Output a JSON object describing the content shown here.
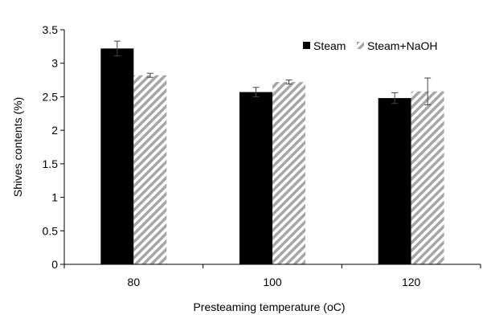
{
  "chart_data": {
    "type": "bar",
    "xlabel": "Presteaming temperature (oC)",
    "ylabel": "Shives contents (%)",
    "categories": [
      "80",
      "100",
      "120"
    ],
    "ylim": [
      0,
      3.5
    ],
    "yticks": [
      "0",
      "0.5",
      "1",
      "1.5",
      "2",
      "2.5",
      "3",
      "3.5"
    ],
    "grid": false,
    "legend_position": "top-right",
    "series": [
      {
        "name": "Steam",
        "values": [
          3.22,
          2.57,
          2.48
        ],
        "errors": [
          0.11,
          0.07,
          0.08
        ],
        "color": "#000000",
        "pattern": "solid"
      },
      {
        "name": "Steam+NaOH",
        "values": [
          2.82,
          2.72,
          2.58
        ],
        "errors": [
          0.03,
          0.03,
          0.2
        ],
        "color": "#a6a6a6",
        "pattern": "diagonal-hatch"
      }
    ]
  }
}
